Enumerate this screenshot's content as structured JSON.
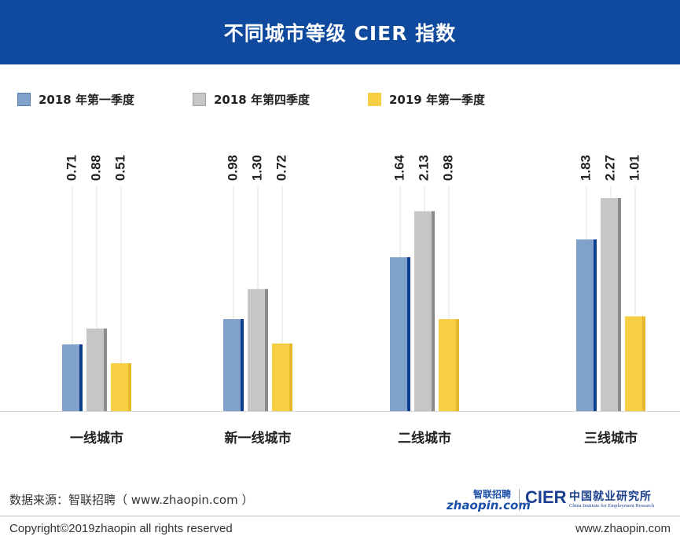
{
  "header": {
    "title": "不同城市等级 CIER 指数"
  },
  "chart_data": {
    "type": "bar",
    "title": "不同城市等级 CIER 指数",
    "categories": [
      "一线城市",
      "新一线城市",
      "二线城市",
      "三线城市"
    ],
    "series": [
      {
        "name": "2018  年第一季度",
        "values": [
          0.71,
          0.98,
          1.64,
          1.83
        ],
        "color": "#7fa1ca",
        "edge": "#0d3f8f"
      },
      {
        "name": "2018  年第四季度",
        "values": [
          0.88,
          1.3,
          2.13,
          2.27
        ],
        "color": "#c6c6c6",
        "edge": "#8c8c8c"
      },
      {
        "name": "2019  年第一季度",
        "values": [
          0.51,
          0.72,
          0.98,
          1.01
        ],
        "color": "#f6cf45",
        "edge": "#e6b82e"
      }
    ],
    "value_labels": [
      [
        "0.71",
        "0.98",
        "1.64",
        "1.83"
      ],
      [
        "0.88",
        "1.30",
        "2.13",
        "2.27"
      ],
      [
        "0.51",
        "0.72",
        "0.98",
        "1.01"
      ]
    ],
    "ylim": [
      0,
      2.27
    ],
    "legend": "top-left",
    "grid": false
  },
  "footer": {
    "source": "数据来源：智联招聘（ www.zhaopin.com ）",
    "copyright": "Copyright©2019zhaopin all rights reserved",
    "website": "www.zhaopin.com",
    "logo_zhaopin_cn": "智联招聘",
    "logo_zhaopin_en": "zhaopin.com",
    "logo_cier": "CIER",
    "logo_cier_cn": "中国就业研究所",
    "logo_cier_en": "China Institute for Employment Research"
  }
}
